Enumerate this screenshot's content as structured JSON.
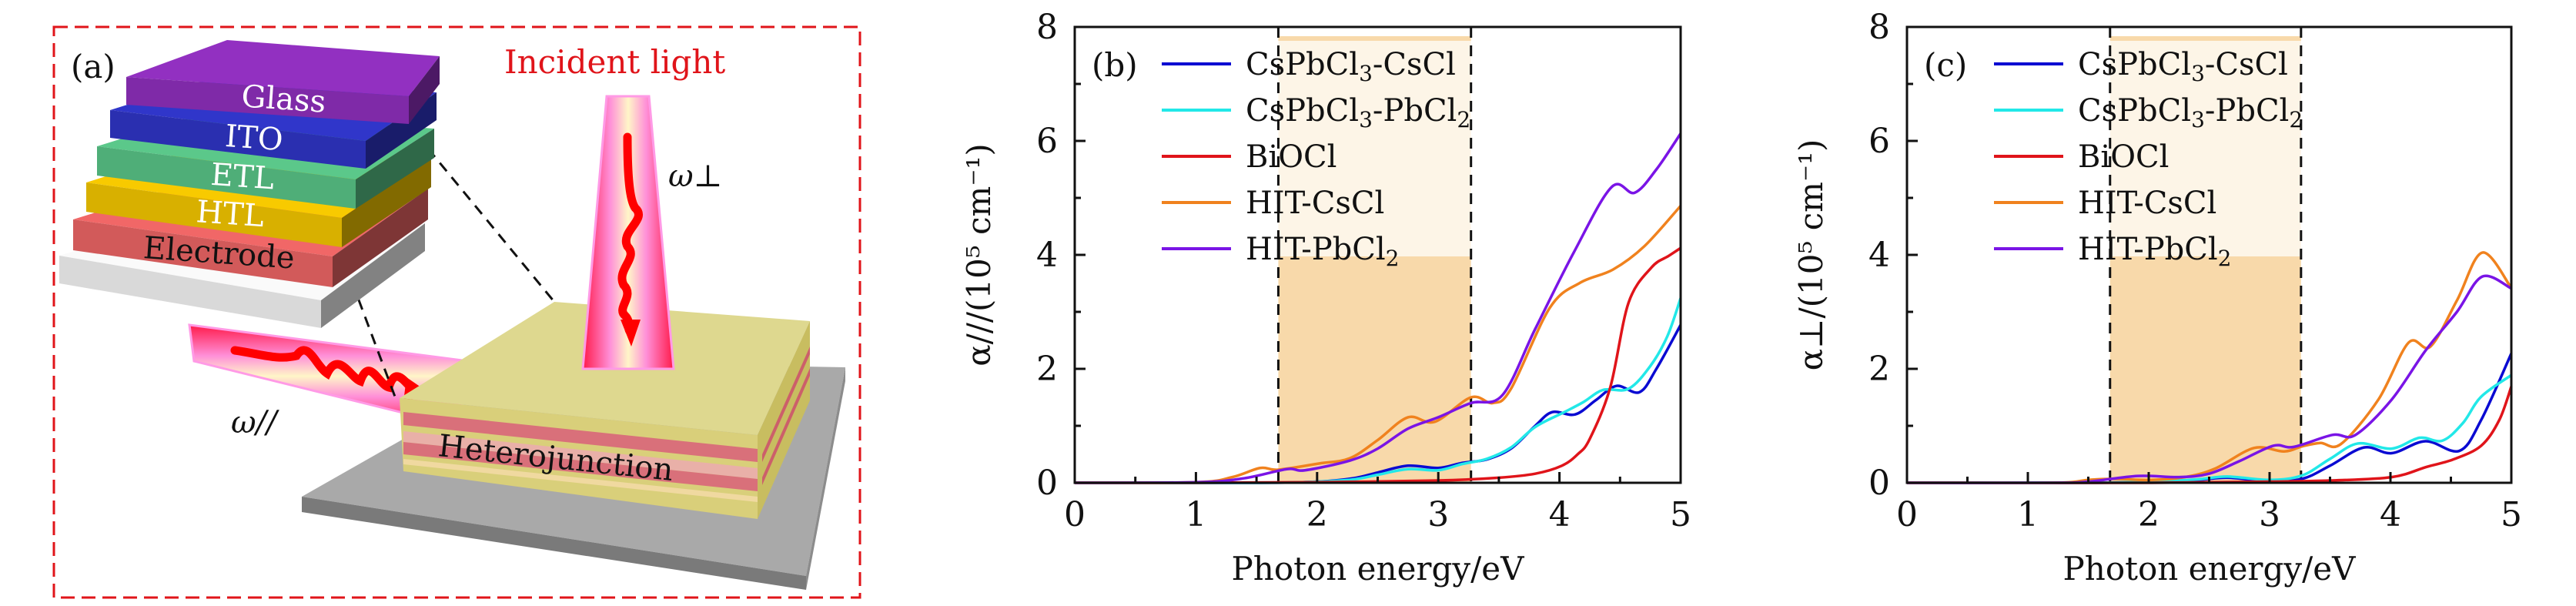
{
  "figure": {
    "panel_a": {
      "label": "(a)",
      "incident_light_label": "Incident light",
      "omega_perp_label": "ω⊥",
      "omega_par_label": "ω//",
      "heterojunction_label": "Heterojunction",
      "layers": [
        {
          "name": "Glass",
          "color": "#7f2aa8",
          "text_color": "#ffffff"
        },
        {
          "name": "ITO",
          "color": "#2a2fb0",
          "text_color": "#ffffff"
        },
        {
          "name": "ETL",
          "color": "#4fae78",
          "text_color": "#ffffff"
        },
        {
          "name": "HTL",
          "color": "#d8b000",
          "text_color": "#ffffff"
        },
        {
          "name": "Electrode",
          "color": "#d25a5a",
          "text_color": "#111111"
        },
        {
          "name": "",
          "color": "#d9d9d9",
          "text_color": "#111111"
        }
      ],
      "frame_color": "#e0141a",
      "accent_color": "#e0141a"
    }
  },
  "chart_data": [
    {
      "type": "line",
      "panel": "(b)",
      "title": "",
      "xlabel": "Photon energy/eV",
      "ylabel": "α///(10⁵ cm⁻¹)",
      "xlim": [
        0,
        5
      ],
      "ylim": [
        0,
        8
      ],
      "xticks": [
        0,
        1,
        2,
        3,
        4,
        5
      ],
      "yticks": [
        0,
        2,
        4,
        6,
        8
      ],
      "grid": false,
      "legend_position": "top-left",
      "shaded_region": {
        "x_start": 1.68,
        "x_end": 3.27,
        "color": "#f8d9aa"
      },
      "series": [
        {
          "name": "CsPbCl3-CsCl",
          "color": "#0a0ad2",
          "x": [
            0,
            1.5,
            2.0,
            2.3,
            2.5,
            2.75,
            3.0,
            3.2,
            3.4,
            3.6,
            3.8,
            3.94,
            4.13,
            4.3,
            4.47,
            4.66,
            4.8,
            5.0
          ],
          "y": [
            0,
            0,
            0.02,
            0.08,
            0.18,
            0.3,
            0.26,
            0.35,
            0.41,
            0.6,
            1.0,
            1.24,
            1.2,
            1.45,
            1.7,
            1.59,
            2.0,
            2.77
          ]
        },
        {
          "name": "CsPbCl3-PbCl2",
          "color": "#22e8e8",
          "x": [
            0,
            1.5,
            2.0,
            2.3,
            2.5,
            2.75,
            3.0,
            3.2,
            3.4,
            3.6,
            3.8,
            4.04,
            4.2,
            4.36,
            4.57,
            4.75,
            4.89,
            5.0
          ],
          "y": [
            0,
            0,
            0.02,
            0.06,
            0.14,
            0.24,
            0.22,
            0.33,
            0.42,
            0.62,
            0.98,
            1.24,
            1.42,
            1.63,
            1.65,
            2.05,
            2.57,
            3.24
          ]
        },
        {
          "name": "BiOCl",
          "color": "#e0141a",
          "x": [
            0,
            1.0,
            2.0,
            3.0,
            3.5,
            3.8,
            4.02,
            4.15,
            4.25,
            4.42,
            4.57,
            4.76,
            4.9,
            5.0
          ],
          "y": [
            0,
            0.0,
            0.01,
            0.04,
            0.09,
            0.16,
            0.3,
            0.5,
            0.77,
            1.68,
            3.16,
            3.78,
            3.98,
            4.12
          ]
        },
        {
          "name": "HIT-CsCl",
          "color": "#f0821e",
          "x": [
            0,
            1.0,
            1.3,
            1.53,
            1.68,
            2.02,
            2.27,
            2.5,
            2.75,
            2.97,
            3.27,
            3.45,
            3.6,
            3.92,
            4.17,
            4.44,
            4.7,
            5.0
          ],
          "y": [
            0,
            0.01,
            0.1,
            0.26,
            0.23,
            0.34,
            0.43,
            0.75,
            1.15,
            1.07,
            1.5,
            1.4,
            1.65,
            3.07,
            3.51,
            3.74,
            4.15,
            4.86
          ]
        },
        {
          "name": "HIT-PbCl2",
          "color": "#7a14e6",
          "x": [
            0,
            1.0,
            1.4,
            1.75,
            1.9,
            2.27,
            2.5,
            2.75,
            3.0,
            3.27,
            3.53,
            3.8,
            4.12,
            4.43,
            4.62,
            4.8,
            5.0
          ],
          "y": [
            0,
            0.01,
            0.08,
            0.24,
            0.22,
            0.39,
            0.6,
            0.95,
            1.15,
            1.4,
            1.54,
            2.7,
            4.05,
            5.19,
            5.09,
            5.5,
            6.13
          ]
        }
      ]
    },
    {
      "type": "line",
      "panel": "(c)",
      "title": "",
      "xlabel": "Photon energy/eV",
      "ylabel": "α⊥/(10⁵ cm⁻¹)",
      "xlim": [
        0,
        5
      ],
      "ylim": [
        0,
        8
      ],
      "xticks": [
        0,
        1,
        2,
        3,
        4,
        5
      ],
      "yticks": [
        0,
        2,
        4,
        6,
        8
      ],
      "grid": false,
      "legend_position": "top-left",
      "shaded_region": {
        "x_start": 1.68,
        "x_end": 3.26,
        "color": "#f8d9aa"
      },
      "series": [
        {
          "name": "CsPbCl3-CsCl",
          "color": "#0a0ad2",
          "x": [
            0,
            1.5,
            2.0,
            2.4,
            2.65,
            3.0,
            3.27,
            3.5,
            3.78,
            4.01,
            4.29,
            4.57,
            4.75,
            5.0
          ],
          "y": [
            0,
            0,
            0.02,
            0.05,
            0.09,
            0.03,
            0.07,
            0.3,
            0.62,
            0.52,
            0.73,
            0.56,
            1.1,
            2.27
          ]
        },
        {
          "name": "CsPbCl3-PbCl2",
          "color": "#22e8e8",
          "x": [
            0,
            1.5,
            2.0,
            2.4,
            2.65,
            3.0,
            3.27,
            3.5,
            3.73,
            4.01,
            4.24,
            4.43,
            4.6,
            4.75,
            5.0
          ],
          "y": [
            0,
            0,
            0.02,
            0.06,
            0.11,
            0.05,
            0.13,
            0.42,
            0.69,
            0.6,
            0.79,
            0.74,
            1.05,
            1.51,
            1.89
          ]
        },
        {
          "name": "BiOCl",
          "color": "#e0141a",
          "x": [
            0,
            2.0,
            3.0,
            3.5,
            4.01,
            4.3,
            4.52,
            4.75,
            4.9,
            5.0
          ],
          "y": [
            0,
            0.0,
            0.02,
            0.04,
            0.1,
            0.28,
            0.41,
            0.65,
            1.1,
            1.69
          ]
        },
        {
          "name": "HIT-CsCl",
          "color": "#f0821e",
          "x": [
            0,
            1.2,
            1.5,
            1.7,
            2.0,
            2.3,
            2.55,
            2.87,
            3.12,
            3.27,
            3.42,
            3.59,
            3.9,
            4.15,
            4.33,
            4.55,
            4.76,
            5.0
          ],
          "y": [
            0,
            0,
            0.05,
            0.07,
            0.05,
            0.1,
            0.25,
            0.61,
            0.55,
            0.64,
            0.7,
            0.68,
            1.46,
            2.46,
            2.39,
            3.2,
            4.04,
            3.42
          ]
        },
        {
          "name": "HIT-PbCl2",
          "color": "#7a14e6",
          "x": [
            0,
            1.2,
            1.5,
            1.91,
            2.25,
            2.5,
            2.75,
            3.03,
            3.2,
            3.52,
            3.71,
            4.01,
            4.29,
            4.55,
            4.76,
            5.0
          ],
          "y": [
            0,
            0,
            0.02,
            0.12,
            0.1,
            0.16,
            0.38,
            0.65,
            0.63,
            0.84,
            0.84,
            1.46,
            2.32,
            3.0,
            3.62,
            3.41
          ]
        }
      ]
    }
  ]
}
